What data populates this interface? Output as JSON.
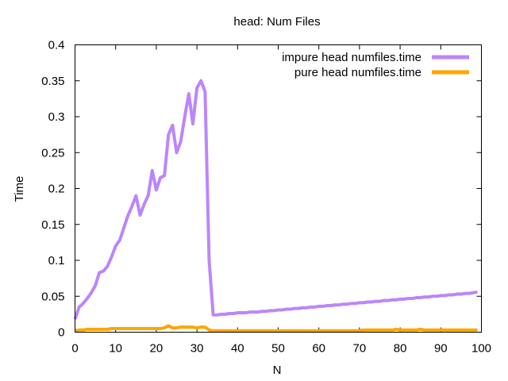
{
  "chart_data": {
    "type": "line",
    "title": "head: Num Files",
    "xlabel": "N",
    "ylabel": "Time",
    "xlim": [
      0,
      100
    ],
    "ylim": [
      0,
      0.4
    ],
    "x_ticks": [
      0,
      10,
      20,
      30,
      40,
      50,
      60,
      70,
      80,
      90,
      100
    ],
    "y_ticks": [
      0,
      0.05,
      0.1,
      0.15,
      0.2,
      0.25,
      0.3,
      0.35,
      0.4
    ],
    "x_tick_labels": [
      "0",
      "10",
      "20",
      "30",
      "40",
      "50",
      "60",
      "70",
      "80",
      "90",
      "100"
    ],
    "y_tick_labels": [
      "0",
      "0.05",
      "0.1",
      "0.15",
      "0.2",
      "0.25",
      "0.3",
      "0.35",
      "0.4"
    ],
    "grid": false,
    "legend_position": "top-right",
    "x": [
      0,
      1,
      2,
      3,
      4,
      5,
      6,
      7,
      8,
      9,
      10,
      11,
      12,
      13,
      14,
      15,
      16,
      17,
      18,
      19,
      20,
      21,
      22,
      23,
      24,
      25,
      26,
      27,
      28,
      29,
      30,
      31,
      32,
      33,
      34,
      35,
      36,
      37,
      38,
      39,
      40,
      41,
      42,
      43,
      44,
      45,
      46,
      47,
      48,
      49,
      50,
      51,
      52,
      53,
      54,
      55,
      56,
      57,
      58,
      59,
      60,
      61,
      62,
      63,
      64,
      65,
      66,
      67,
      68,
      69,
      70,
      71,
      72,
      73,
      74,
      75,
      76,
      77,
      78,
      79,
      80,
      81,
      82,
      83,
      84,
      85,
      86,
      87,
      88,
      89,
      90,
      91,
      92,
      93,
      94,
      95,
      96,
      97,
      98,
      99
    ],
    "series": [
      {
        "name": "impure head numfiles.time",
        "color": "#bb86fc",
        "values": [
          0.018,
          0.035,
          0.04,
          0.047,
          0.055,
          0.065,
          0.083,
          0.085,
          0.092,
          0.105,
          0.12,
          0.128,
          0.145,
          0.162,
          0.175,
          0.19,
          0.163,
          0.178,
          0.19,
          0.225,
          0.198,
          0.215,
          0.218,
          0.275,
          0.288,
          0.25,
          0.265,
          0.3,
          0.332,
          0.29,
          0.34,
          0.35,
          0.335,
          0.1,
          0.024,
          0.024,
          0.025,
          0.025,
          0.026,
          0.026,
          0.027,
          0.027,
          0.027,
          0.028,
          0.028,
          0.028,
          0.029,
          0.029,
          0.03,
          0.03,
          0.031,
          0.031,
          0.032,
          0.032,
          0.033,
          0.033,
          0.034,
          0.034,
          0.035,
          0.035,
          0.036,
          0.036,
          0.037,
          0.037,
          0.038,
          0.038,
          0.039,
          0.039,
          0.04,
          0.04,
          0.041,
          0.041,
          0.042,
          0.042,
          0.043,
          0.043,
          0.044,
          0.044,
          0.045,
          0.045,
          0.046,
          0.046,
          0.047,
          0.047,
          0.048,
          0.048,
          0.049,
          0.049,
          0.05,
          0.05,
          0.051,
          0.051,
          0.052,
          0.052,
          0.053,
          0.053,
          0.054,
          0.054,
          0.055,
          0.056
        ]
      },
      {
        "name": "pure head numfiles.time",
        "color": "#ffa500",
        "values": [
          0.002,
          0.003,
          0.003,
          0.004,
          0.004,
          0.004,
          0.004,
          0.004,
          0.004,
          0.005,
          0.005,
          0.005,
          0.005,
          0.005,
          0.005,
          0.005,
          0.005,
          0.005,
          0.005,
          0.005,
          0.005,
          0.005,
          0.006,
          0.009,
          0.006,
          0.006,
          0.007,
          0.007,
          0.007,
          0.007,
          0.006,
          0.007,
          0.007,
          0.003,
          0.002,
          0.002,
          0.002,
          0.002,
          0.002,
          0.002,
          0.002,
          0.002,
          0.002,
          0.002,
          0.002,
          0.002,
          0.002,
          0.002,
          0.002,
          0.002,
          0.002,
          0.002,
          0.002,
          0.002,
          0.002,
          0.002,
          0.002,
          0.002,
          0.002,
          0.002,
          0.002,
          0.002,
          0.002,
          0.002,
          0.002,
          0.002,
          0.002,
          0.002,
          0.002,
          0.002,
          0.002,
          0.003,
          0.003,
          0.003,
          0.003,
          0.003,
          0.003,
          0.003,
          0.003,
          0.004,
          0.003,
          0.003,
          0.003,
          0.003,
          0.003,
          0.004,
          0.003,
          0.003,
          0.003,
          0.003,
          0.003,
          0.003,
          0.003,
          0.003,
          0.003,
          0.003,
          0.003,
          0.003,
          0.003,
          0.003
        ]
      }
    ]
  }
}
